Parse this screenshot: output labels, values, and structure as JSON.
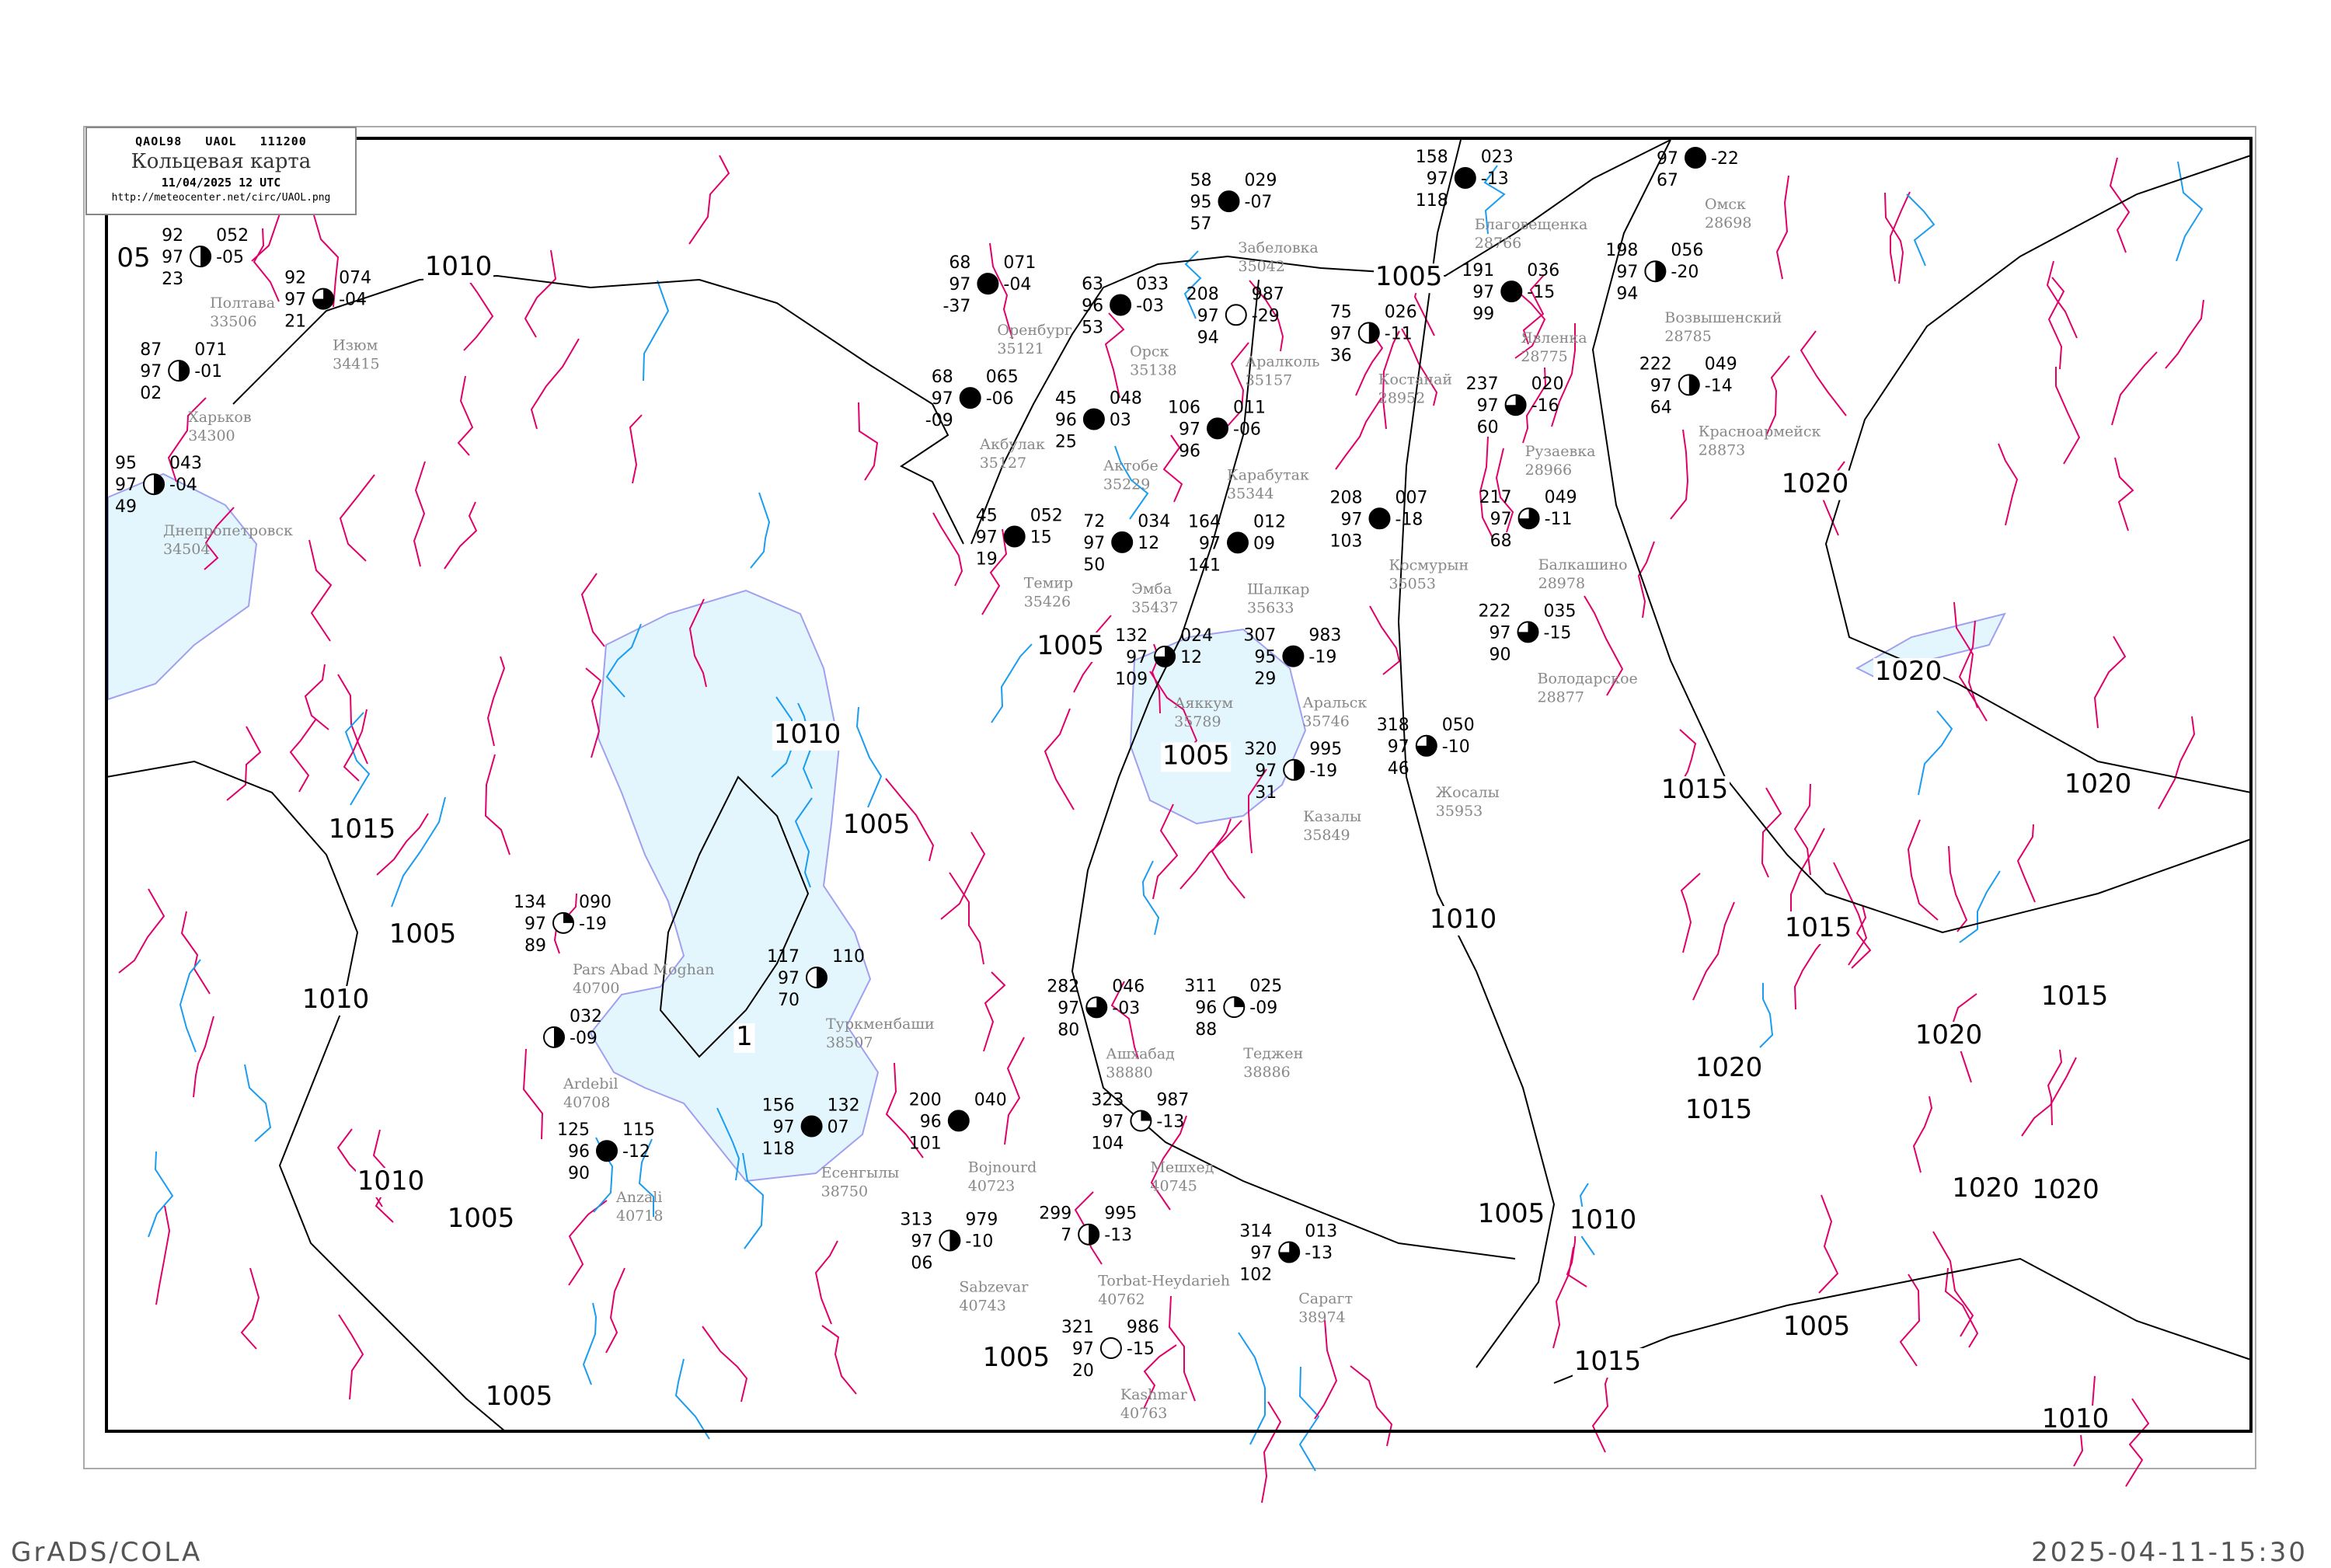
{
  "header": {
    "code": "QAOL98   UAOL   111200",
    "title": "Кольцевая карта",
    "date": "11/04/2025 12 UTC",
    "url": "http://meteocenter.net/circ/UAOL.png"
  },
  "footer": {
    "left": "GrADS/COLA",
    "right": "2025-04-11-15:30"
  },
  "colors": {
    "isobar": "#000000",
    "isotherm_warm": "#e0006a",
    "isotherm_cold": "#1a9cf0",
    "water": "#e4f6fd",
    "coast": "#a0a0f0",
    "precip": "#22cc44"
  },
  "isobar_labels": [
    "1010",
    "1010",
    "1005",
    "1005",
    "1005",
    "1005",
    "1010",
    "1015",
    "1020",
    "1020",
    "1020",
    "1015",
    "1015",
    "1020",
    "1020",
    "1015",
    "1020",
    "1020",
    "1010",
    "1005",
    "1005",
    "1015",
    "1005",
    "1010",
    "1015",
    "1005",
    "1010",
    "1010",
    "1005",
    "1005",
    "05",
    "1"
  ],
  "stations": [
    {
      "name": "Полтава",
      "id": "33506",
      "tl": "92",
      "ml": "97",
      "bl": "23",
      "tr": "052",
      "mr": "-05",
      "cover": 0.5
    },
    {
      "name": "Днепропетровск",
      "id": "34504",
      "tl": "95",
      "ml": "97",
      "bl": "49",
      "tr": "043",
      "mr": "-04",
      "cover": 0.5
    },
    {
      "name": "Харьков",
      "id": "34300",
      "tl": "87",
      "ml": "97",
      "bl": "02",
      "tr": "071",
      "mr": "-01",
      "cover": 0.5
    },
    {
      "name": "Изюм",
      "id": "34415",
      "tl": "92",
      "ml": "97",
      "bl": "21",
      "tr": "074",
      "mr": "-04",
      "cover": 0.75
    },
    {
      "name": "Шалкар",
      "id": "35633",
      "tl": "164",
      "ml": "97",
      "bl": "141",
      "tr": "012",
      "mr": "09",
      "cover": 1
    },
    {
      "name": "Аяккум",
      "id": "35789",
      "tl": "132",
      "ml": "97",
      "bl": "109",
      "tr": "024",
      "mr": "12",
      "cover": 0.75
    },
    {
      "name": "Аральск",
      "id": "35746",
      "tl": "307",
      "ml": "95",
      "bl": "29",
      "tr": "983",
      "mr": "-19",
      "cover": 1
    },
    {
      "name": "Казалы",
      "id": "35849",
      "tl": "320",
      "ml": "97",
      "bl": "31",
      "tr": "995",
      "mr": "-19",
      "cover": 0.5
    },
    {
      "name": "Жосалы",
      "id": "35953",
      "tl": "318",
      "ml": "97",
      "bl": "46",
      "tr": "050",
      "mr": "-10",
      "cover": 0.75
    },
    {
      "name": "Оренбург",
      "id": "35121",
      "tl": "68",
      "ml": "97",
      "bl": "-37",
      "tr": "071",
      "mr": "-04",
      "cover": 1
    },
    {
      "name": "Акбулак",
      "id": "35127",
      "tl": "68",
      "ml": "97",
      "bl": "-09",
      "tr": "065",
      "mr": "-06",
      "cover": 1
    },
    {
      "name": "Актобе",
      "id": "35229",
      "tl": "45",
      "ml": "96",
      "bl": "25",
      "tr": "048",
      "mr": "03",
      "cover": 1
    },
    {
      "name": "Орск",
      "id": "35138",
      "tl": "63",
      "ml": "96",
      "bl": "53",
      "tr": "033",
      "mr": "-03",
      "cover": 1
    },
    {
      "name": "Карабутак",
      "id": "35344",
      "tl": "106",
      "ml": "97",
      "bl": "96",
      "tr": "011",
      "mr": "-06",
      "cover": 1
    },
    {
      "name": "Темир",
      "id": "35426",
      "tl": "45",
      "ml": "97",
      "bl": "19",
      "tr": "052",
      "mr": "15",
      "cover": 1
    },
    {
      "name": "Эмба",
      "id": "35437",
      "tl": "72",
      "ml": "97",
      "bl": "50",
      "tr": "034",
      "mr": "12",
      "cover": 1
    },
    {
      "name": "Забеловка",
      "id": "35042",
      "tl": "58",
      "ml": "95",
      "bl": "57",
      "tr": "029",
      "mr": "-07",
      "cover": 1
    },
    {
      "name": "Аралколь",
      "id": "35157",
      "tl": "208",
      "ml": "97",
      "bl": "94",
      "tr": "987",
      "mr": "-29",
      "cover": 0
    },
    {
      "name": "Костанай",
      "id": "28952",
      "tl": "75",
      "ml": "97",
      "bl": "36",
      "tr": "026",
      "mr": "-11",
      "cover": 0.5
    },
    {
      "name": "Космурын",
      "id": "35053",
      "tl": "208",
      "ml": "97",
      "bl": "103",
      "tr": "007",
      "mr": "-18",
      "cover": 1
    },
    {
      "name": "Благовещенка",
      "id": "28766",
      "tl": "158",
      "ml": "97",
      "bl": "118",
      "tr": "023",
      "mr": "-13",
      "cover": 1
    },
    {
      "name": "Явленка",
      "id": "28775",
      "tl": "191",
      "ml": "97",
      "bl": "99",
      "tr": "036",
      "mr": "-15",
      "cover": 1
    },
    {
      "name": "Красноармейск",
      "id": "28873",
      "tl": "222",
      "ml": "97",
      "bl": "64",
      "tr": "049",
      "mr": "-14",
      "cover": 0.5
    },
    {
      "name": "Возвышенский",
      "id": "28785",
      "tl": "198",
      "ml": "97",
      "bl": "94",
      "tr": "056",
      "mr": "-20",
      "cover": 0.5
    },
    {
      "name": "Омск",
      "id": "28698",
      "tl": "",
      "ml": "97",
      "bl": "67",
      "tr": "",
      "mr": "-22",
      "cover": 1
    },
    {
      "name": "Володарское",
      "id": "28877",
      "tl": "222",
      "ml": "97",
      "bl": "90",
      "tr": "035",
      "mr": "-15",
      "cover": 0.75
    },
    {
      "name": "Рузаевка",
      "id": "28966",
      "tl": "237",
      "ml": "97",
      "bl": "60",
      "tr": "020",
      "mr": "-16",
      "cover": 0.75
    },
    {
      "name": "Балкашино",
      "id": "28978",
      "tl": "217",
      "ml": "97",
      "bl": "68",
      "tr": "049",
      "mr": "-11",
      "cover": 0.75
    },
    {
      "name": "Туркменбаши",
      "id": "38507",
      "tl": "117",
      "ml": "97",
      "bl": "70",
      "tr": "110",
      "mr": "",
      "cover": 0.5
    },
    {
      "name": "Есенгылы",
      "id": "38750",
      "tl": "156",
      "ml": "97",
      "bl": "118",
      "tr": "132",
      "mr": "07",
      "cover": 1
    },
    {
      "name": "Anzali",
      "id": "40718",
      "tl": "125",
      "ml": "96",
      "bl": "90",
      "tr": "115",
      "mr": "-12",
      "cover": 1
    },
    {
      "name": "Pars Abad Moghan",
      "id": "40700",
      "tl": "134",
      "ml": "97",
      "bl": "89",
      "tr": "090",
      "mr": "-19",
      "cover": 0.25
    },
    {
      "name": "Ardebil",
      "id": "40708",
      "tl": "",
      "ml": "",
      "bl": "",
      "tr": "032",
      "mr": "-09",
      "cover": 0.5
    },
    {
      "name": "Bojnourd",
      "id": "40723",
      "tl": "200",
      "ml": "96",
      "bl": "101",
      "tr": "040",
      "mr": "",
      "cover": 1
    },
    {
      "name": "Ашхабад",
      "id": "38880",
      "tl": "282",
      "ml": "97",
      "bl": "80",
      "tr": "046",
      "mr": "-03",
      "cover": 0.75
    },
    {
      "name": "Теджен",
      "id": "38886",
      "tl": "311",
      "ml": "96",
      "bl": "88",
      "tr": "025",
      "mr": "-09",
      "cover": 0.25
    },
    {
      "name": "Сарагт",
      "id": "38974",
      "tl": "314",
      "ml": "97",
      "bl": "102",
      "tr": "013",
      "mr": "-13",
      "cover": 0.75
    },
    {
      "name": "Sabzevar",
      "id": "40743",
      "tl": "313",
      "ml": "97",
      "bl": "06",
      "tr": "979",
      "mr": "-10",
      "cover": 0.5
    },
    {
      "name": "Мешхед",
      "id": "40745",
      "tl": "323",
      "ml": "97",
      "bl": "104",
      "tr": "987",
      "mr": "-13",
      "cover": 0.25
    },
    {
      "name": "Kashmar",
      "id": "40763",
      "tl": "321",
      "ml": "97",
      "bl": "20",
      "tr": "986",
      "mr": "-15",
      "cover": 0
    },
    {
      "name": "Torbat-Heydarieh",
      "id": "40762",
      "tl": "299",
      "ml": "7",
      "bl": "",
      "tr": "995",
      "mr": "-13",
      "cover": 0.5
    }
  ]
}
